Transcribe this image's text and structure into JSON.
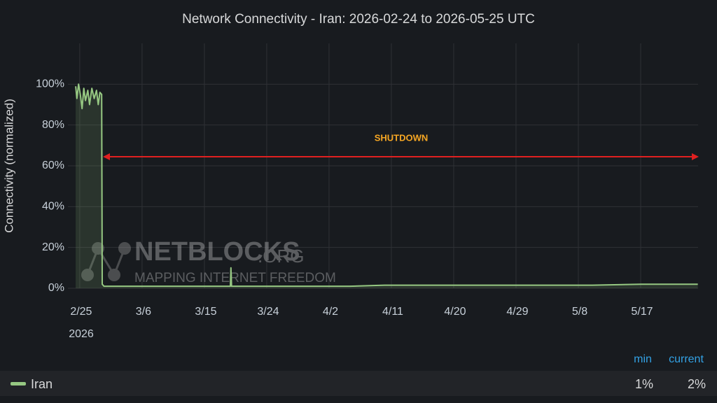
{
  "chart_data": {
    "type": "line",
    "title": "Network Connectivity - Iran: 2026-02-24 to 2026-05-25 UTC",
    "y_label": "Connectivity (normalized)",
    "annotation": "SHUTDOWN",
    "watermark": {
      "name": "NETBLOCKS",
      "suffix": ".ORG",
      "tagline": "MAPPING INTERNET FREEDOM"
    },
    "x_year_label": "2026",
    "xlim": [
      "2026-02-23T07:00",
      "2026-05-25T07:00"
    ],
    "xticks": [
      {
        "value": "2026-02-25",
        "label": "2/25"
      },
      {
        "value": "2026-03-06",
        "label": "3/6"
      },
      {
        "value": "2026-03-15",
        "label": "3/15"
      },
      {
        "value": "2026-03-24",
        "label": "3/24"
      },
      {
        "value": "2026-04-02",
        "label": "4/2"
      },
      {
        "value": "2026-04-11",
        "label": "4/11"
      },
      {
        "value": "2026-04-20",
        "label": "4/20"
      },
      {
        "value": "2026-04-29",
        "label": "4/29"
      },
      {
        "value": "2026-05-08",
        "label": "5/8"
      },
      {
        "value": "2026-05-17",
        "label": "5/17"
      }
    ],
    "ylim": [
      0,
      120
    ],
    "yticks": [
      {
        "value": 0,
        "label": "0%"
      },
      {
        "value": 20,
        "label": "20%"
      },
      {
        "value": 40,
        "label": "40%"
      },
      {
        "value": 60,
        "label": "60%"
      },
      {
        "value": 80,
        "label": "80%"
      },
      {
        "value": 100,
        "label": "100%"
      }
    ],
    "grid": true,
    "x": [
      "2026-02-24T10:00",
      "2026-02-24T14:00",
      "2026-02-24T20:00",
      "2026-02-25T02:00",
      "2026-02-25T08:00",
      "2026-02-25T14:00",
      "2026-02-25T20:00",
      "2026-02-26T04:00",
      "2026-02-26T10:00",
      "2026-02-26T18:00",
      "2026-02-27T02:00",
      "2026-02-27T10:00",
      "2026-02-27T16:00",
      "2026-02-27T22:00",
      "2026-02-28T04:00",
      "2026-02-28T06:00",
      "2026-02-28T12:00",
      "2026-03-05T00:00",
      "2026-03-10T00:00",
      "2026-03-15T00:00",
      "2026-03-18T18:00",
      "2026-03-18T20:00",
      "2026-03-18T22:00",
      "2026-03-25T00:00",
      "2026-04-05T00:00",
      "2026-04-10T00:00",
      "2026-04-20T00:00",
      "2026-05-01T00:00",
      "2026-05-10T00:00",
      "2026-05-17T00:00",
      "2026-05-25T06:00"
    ],
    "series": [
      {
        "name": "Iran",
        "color": "#96c882",
        "values": [
          99,
          93,
          100,
          95,
          88,
          98,
          92,
          97,
          90,
          98,
          93,
          97,
          90,
          96,
          95,
          2,
          1,
          1,
          1,
          1,
          1,
          10,
          1,
          1,
          1,
          1.5,
          1.5,
          1.5,
          1.5,
          2,
          2
        ]
      }
    ],
    "legend": {
      "columns": [
        "min",
        "current"
      ],
      "values": [
        1,
        2
      ],
      "value_labels": [
        "1%",
        "2%"
      ]
    }
  }
}
